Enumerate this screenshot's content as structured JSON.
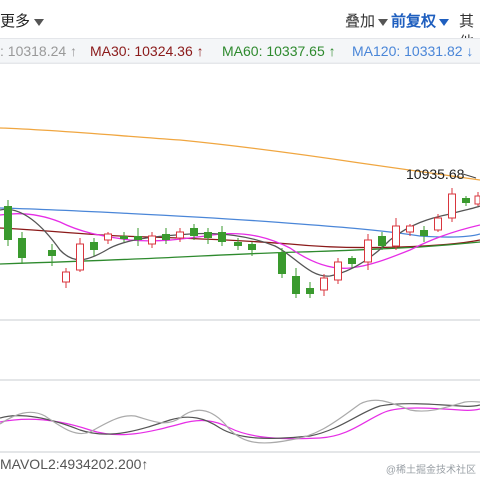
{
  "toolbar": {
    "more_label": "更多",
    "overlay_label": "叠加",
    "adjust_label": "前复权",
    "other_label": "其他"
  },
  "ma_bar": {
    "ma_partial": ": 10318.24 ↑",
    "ma30": "MA30: 10324.36 ↑",
    "ma60": "MA60: 10337.65 ↑",
    "ma120": "MA120: 10331.82 ↓"
  },
  "colors": {
    "up": "#d9363e",
    "down": "#3a9a2e",
    "ma30": "#8b1a1a",
    "ma60": "#2e8a2e",
    "ma120": "#4a86d8",
    "ma250": "#f0a640",
    "ma10": "#e62ee6",
    "ma5": "#555555"
  },
  "chart_data": {
    "type": "candlestick",
    "price_annotation": "10935.68",
    "volume_label": "MAVOL2:4934202.200↑",
    "watermark": "@稀土掘金技术社区"
  }
}
